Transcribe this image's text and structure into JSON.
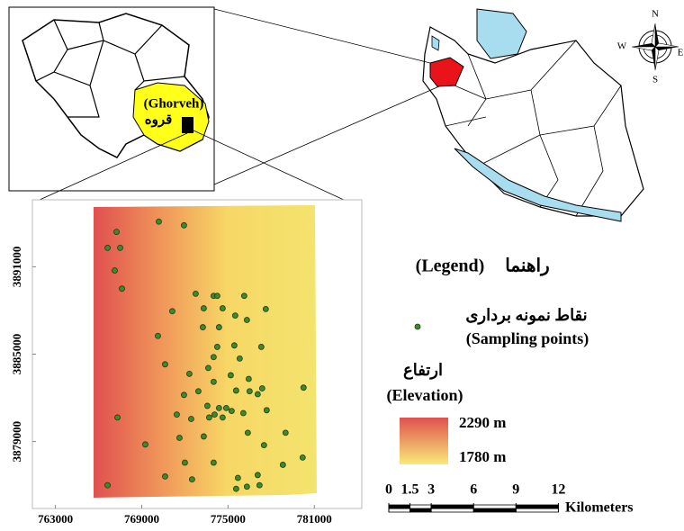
{
  "chart_data": {
    "type": "scatter",
    "x": [
      767250,
      766625,
      767500,
      767125,
      767625,
      770188,
      771938,
      772750,
      774000,
      774250,
      776125,
      771125,
      773313,
      774625,
      775500,
      776313,
      777625,
      773250,
      774375,
      770125,
      774250,
      775438,
      777313,
      774000,
      775813,
      770625,
      773625,
      772313,
      775188,
      774000,
      776438,
      772938,
      775563,
      776500,
      777375,
      777063,
      780250,
      771938,
      773563,
      774375,
      775250,
      776063,
      774063,
      773688,
      774625,
      774875,
      771438,
      772438,
      777688,
      767313,
      776375,
      779000,
      773313,
      769250,
      771625,
      777500,
      772000,
      774000,
      778813,
      780188,
      770625,
      772500,
      775688,
      777063,
      776313,
      775563,
      777188,
      766625
    ],
    "y": [
      3893400,
      3892300,
      3892300,
      3890750,
      3889500,
      3894100,
      3893850,
      3889150,
      3889000,
      3889000,
      3889000,
      3887950,
      3888150,
      3888150,
      3887650,
      3887350,
      3888100,
      3886850,
      3886850,
      3886250,
      3885500,
      3885600,
      3885500,
      3884800,
      3884700,
      3884300,
      3884050,
      3883650,
      3883550,
      3883100,
      3883300,
      3882450,
      3882500,
      3882450,
      3882650,
      3882250,
      3882700,
      3882200,
      3881450,
      3881300,
      3881100,
      3880950,
      3880850,
      3880650,
      3880650,
      3881300,
      3880850,
      3880550,
      3881150,
      3880650,
      3879600,
      3879600,
      3879350,
      3878800,
      3879250,
      3878750,
      3877550,
      3877550,
      3877400,
      3877900,
      3876600,
      3876400,
      3876500,
      3876700,
      3875900,
      3875750,
      3876000,
      3876000
    ],
    "xlim": [
      761400,
      784300
    ],
    "ylim": [
      3874400,
      3895600
    ],
    "xticks": [
      763000,
      769000,
      775000,
      781000
    ],
    "yticks": [
      3879000,
      3885000,
      3891000
    ],
    "color": "#3d8a2a"
  },
  "inset": {
    "label_en": "(Ghorveh)",
    "label_fa": "قروه"
  },
  "compass": {
    "n": "N",
    "s": "S",
    "e": "E",
    "w": "W"
  },
  "legend": {
    "title_en": "(Legend)",
    "title_fa": "راهنما",
    "points_fa": "نقاط نمونه برداری",
    "points_en": "(Sampling points)",
    "elevation_fa": "ارتفاع",
    "elevation_en": "(Elevation)",
    "elevation_max": "2290 m",
    "elevation_min": "1780 m"
  },
  "scale_bar": {
    "ticks": [
      0,
      1.5,
      3,
      6,
      9,
      12
    ],
    "unit": "Kilometers"
  }
}
